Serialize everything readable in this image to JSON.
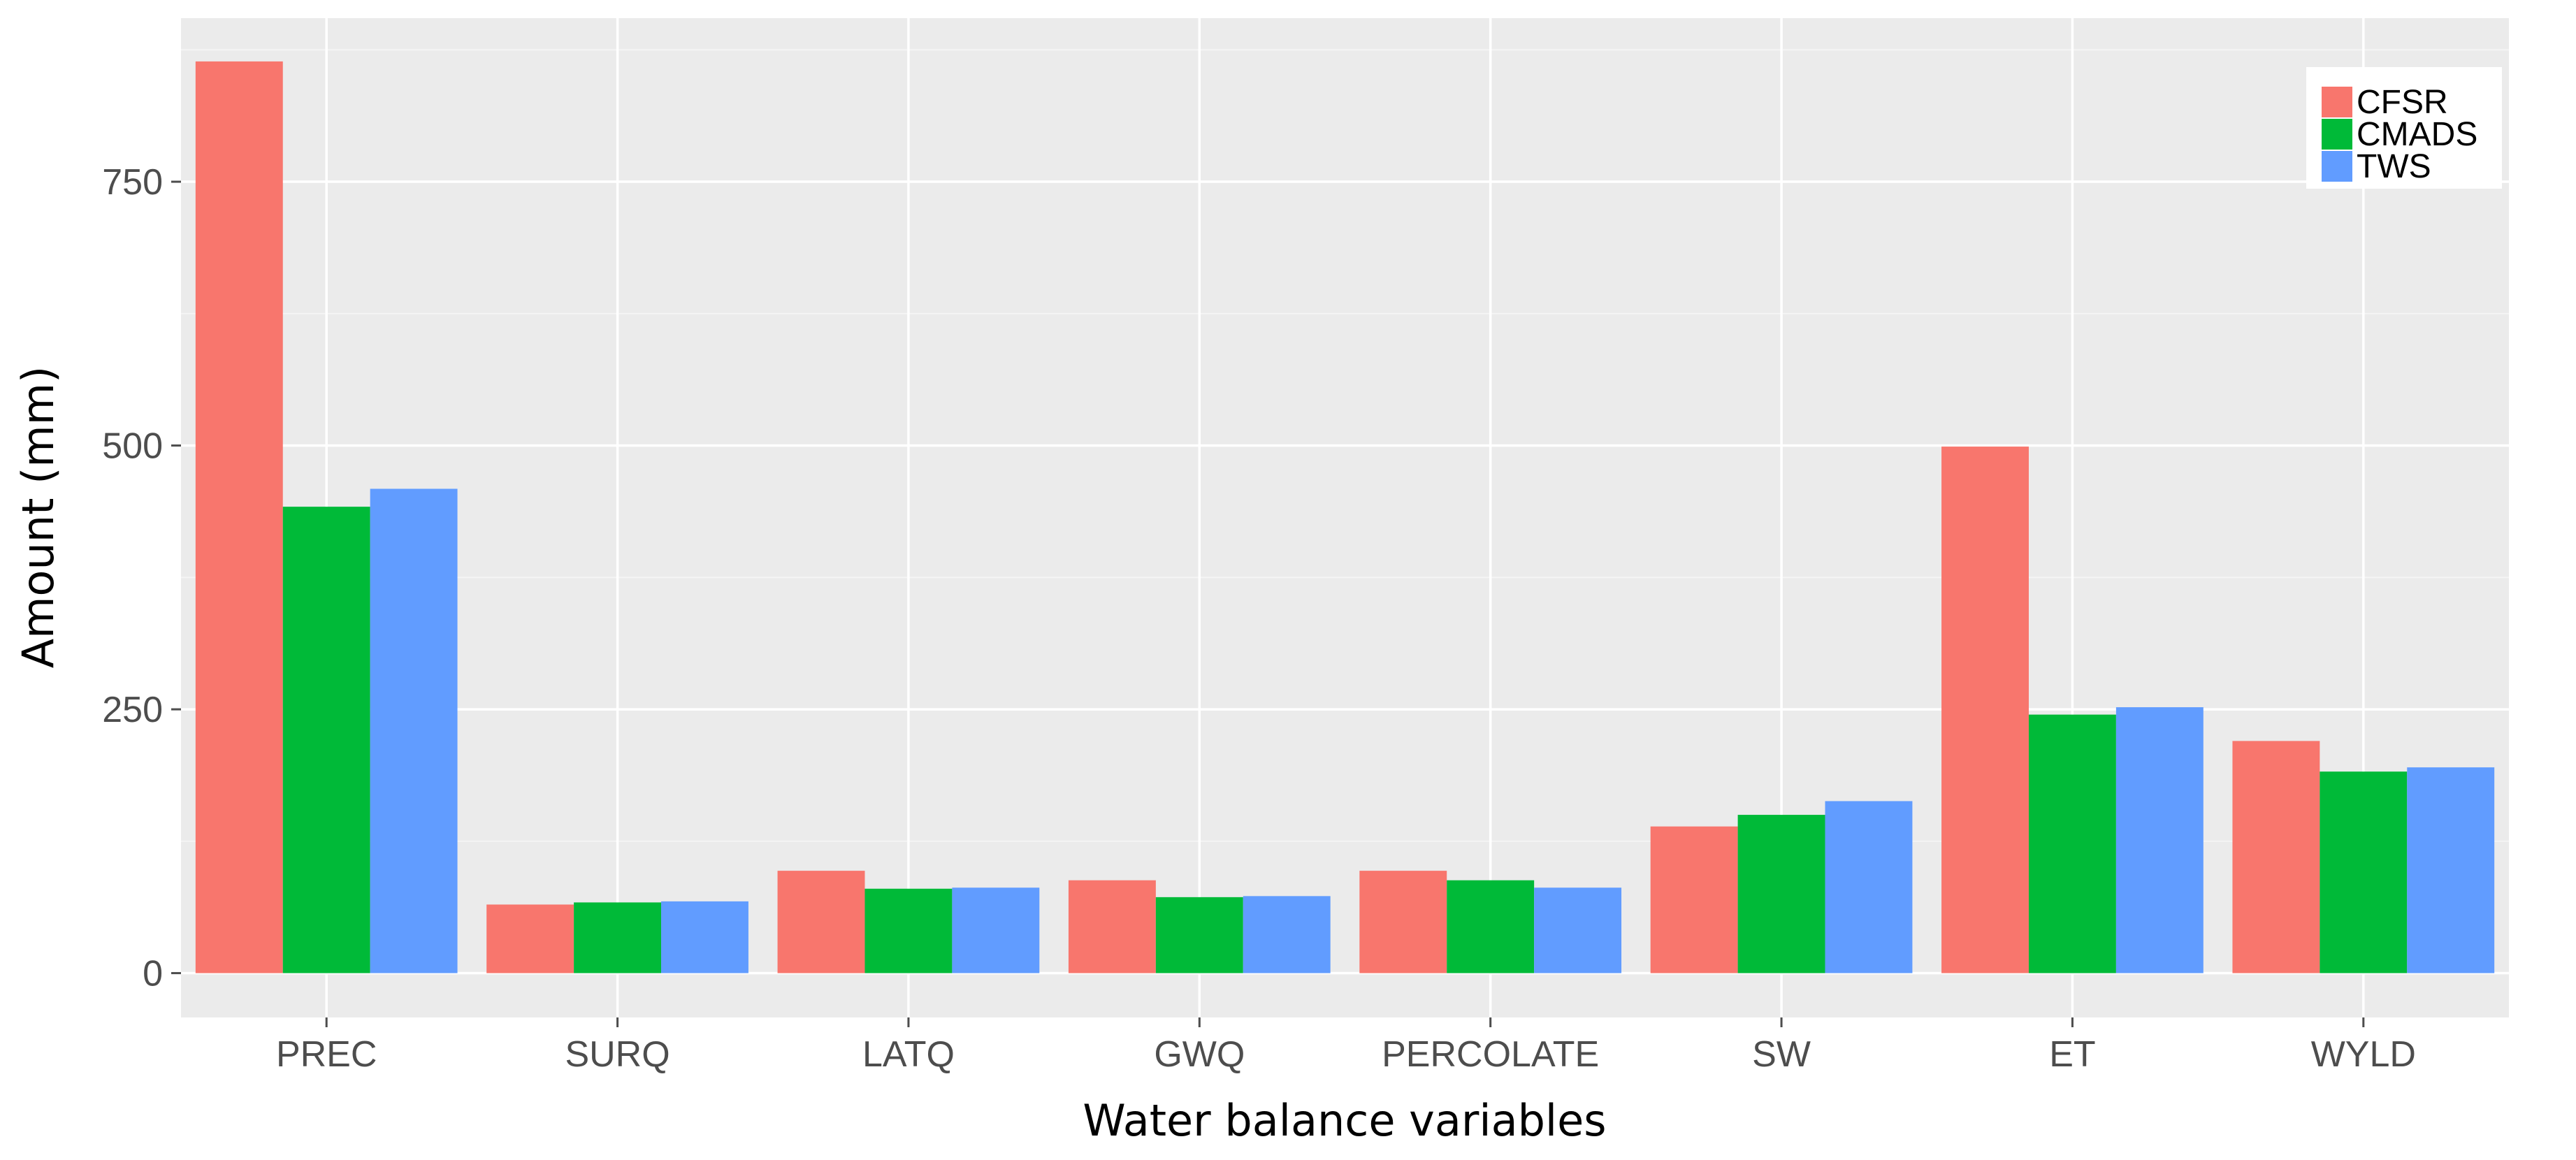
{
  "chart_data": {
    "type": "bar",
    "title": "",
    "xlabel": "Water balance variables",
    "ylabel": "Amount  (mm)",
    "ylim": [
      -42,
      905
    ],
    "yticks": [
      0,
      250,
      500,
      750
    ],
    "grid": true,
    "legend_position": "top-right",
    "categories": [
      "PREC",
      "SURQ",
      "LATQ",
      "GWQ",
      "PERCOLATE",
      "SW",
      "ET",
      "WYLD"
    ],
    "series": [
      {
        "name": "CFSR",
        "color": "#f8766d",
        "values": [
          864,
          65,
          97,
          88,
          97,
          139,
          499,
          220
        ]
      },
      {
        "name": "CMADS",
        "color": "#00ba38",
        "values": [
          442,
          67,
          80,
          72,
          88,
          150,
          245,
          191
        ]
      },
      {
        "name": "TWS",
        "color": "#619cff",
        "values": [
          459,
          68,
          81,
          73,
          81,
          163,
          252,
          195
        ]
      }
    ]
  }
}
